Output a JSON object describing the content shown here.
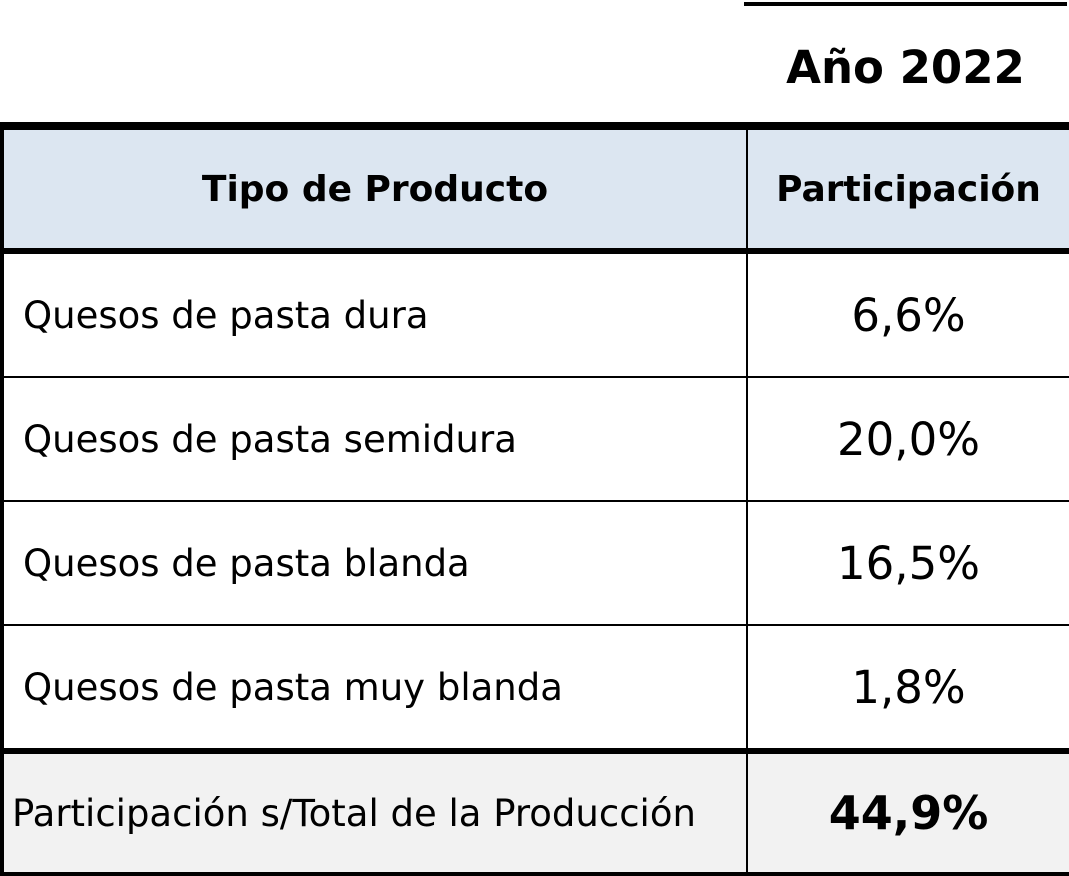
{
  "year_label": "Año 2022",
  "table": {
    "headers": [
      "Tipo de Producto",
      "Participación"
    ],
    "rows": [
      {
        "product": "Quesos de pasta dura",
        "share": "6,6%"
      },
      {
        "product": "Quesos de pasta semidura",
        "share": "20,0%"
      },
      {
        "product": "Quesos de pasta blanda",
        "share": "16,5%"
      },
      {
        "product": "Quesos de pasta muy blanda",
        "share": "1,8%"
      }
    ],
    "total": {
      "label": "Participación s/Total de la Producción",
      "share": "44,9%"
    }
  },
  "colors": {
    "header_bg": "#dce6f1",
    "total_bg": "#f2f2f2",
    "border": "#000000"
  }
}
